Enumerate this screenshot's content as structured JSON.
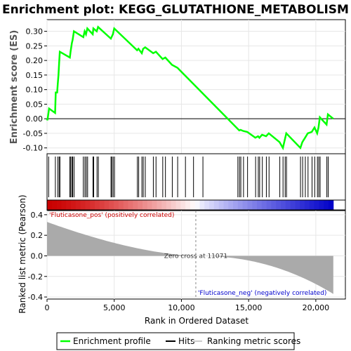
{
  "chart_data": {
    "type": "line",
    "title": "Enrichment plot: KEGG_GLUTATHIONE_METABOLISM",
    "top_panel": {
      "ylabel": "Enrichment score (ES)",
      "ylim": [
        -0.12,
        0.34
      ],
      "yticks": [
        "-0.10",
        "-0.05",
        "0.00",
        "0.05",
        "0.10",
        "0.15",
        "0.20",
        "0.25",
        "0.30"
      ],
      "ytick_values": [
        -0.1,
        -0.05,
        0.0,
        0.05,
        0.1,
        0.15,
        0.2,
        0.25,
        0.3
      ],
      "series": [
        {
          "name": "Enrichment profile",
          "color": "#00ff00",
          "points": [
            [
              0,
              0.0
            ],
            [
              30,
              -0.005
            ],
            [
              150,
              0.035
            ],
            [
              600,
              0.02
            ],
            [
              650,
              0.09
            ],
            [
              750,
              0.09
            ],
            [
              800,
              0.12
            ],
            [
              850,
              0.15
            ],
            [
              900,
              0.19
            ],
            [
              950,
              0.23
            ],
            [
              1700,
              0.21
            ],
            [
              1750,
              0.23
            ],
            [
              1850,
              0.26
            ],
            [
              1900,
              0.27
            ],
            [
              2000,
              0.3
            ],
            [
              2700,
              0.28
            ],
            [
              2800,
              0.3
            ],
            [
              2900,
              0.29
            ],
            [
              3000,
              0.31
            ],
            [
              3400,
              0.29
            ],
            [
              3450,
              0.31
            ],
            [
              3700,
              0.3
            ],
            [
              3800,
              0.315
            ],
            [
              4750,
              0.275
            ],
            [
              4800,
              0.28
            ],
            [
              4900,
              0.29
            ],
            [
              5000,
              0.31
            ],
            [
              6700,
              0.235
            ],
            [
              6800,
              0.24
            ],
            [
              7050,
              0.225
            ],
            [
              7150,
              0.24
            ],
            [
              7300,
              0.245
            ],
            [
              7900,
              0.225
            ],
            [
              8100,
              0.23
            ],
            [
              8600,
              0.205
            ],
            [
              8800,
              0.21
            ],
            [
              9300,
              0.185
            ],
            [
              9700,
              0.175
            ],
            [
              14200,
              -0.035
            ],
            [
              14300,
              -0.04
            ],
            [
              14400,
              -0.038
            ],
            [
              14600,
              -0.042
            ],
            [
              14900,
              -0.045
            ],
            [
              15500,
              -0.065
            ],
            [
              15700,
              -0.06
            ],
            [
              15800,
              -0.065
            ],
            [
              16000,
              -0.055
            ],
            [
              16300,
              -0.06
            ],
            [
              16500,
              -0.05
            ],
            [
              17300,
              -0.08
            ],
            [
              17550,
              -0.1
            ],
            [
              17700,
              -0.07
            ],
            [
              17800,
              -0.05
            ],
            [
              18850,
              -0.1
            ],
            [
              19000,
              -0.08
            ],
            [
              19200,
              -0.065
            ],
            [
              19400,
              -0.05
            ],
            [
              19700,
              -0.045
            ],
            [
              19900,
              -0.03
            ],
            [
              20100,
              -0.05
            ],
            [
              20200,
              -0.03
            ],
            [
              20300,
              0.005
            ],
            [
              20800,
              -0.02
            ],
            [
              20900,
              0.015
            ],
            [
              21300,
              0.0
            ]
          ]
        }
      ]
    },
    "hits": [
      120,
      620,
      800,
      900,
      960,
      1700,
      1760,
      1860,
      1910,
      2010,
      2700,
      2820,
      2920,
      3020,
      3420,
      3470,
      3720,
      3820,
      4760,
      4820,
      4920,
      5020,
      6720,
      6820,
      7060,
      7160,
      7310,
      7910,
      8110,
      8610,
      8810,
      9320,
      9720,
      10300,
      10900,
      11600,
      14200,
      14320,
      14420,
      14620,
      14920,
      15520,
      15720,
      15820,
      16020,
      16320,
      16520,
      17320,
      17560,
      17720,
      17820,
      18860,
      19020,
      19220,
      19420,
      19720,
      19920,
      20120,
      20220,
      20320,
      20820,
      20920
    ],
    "bottom_panel": {
      "ylabel": "Ranked list metric (Pearson)",
      "xlabel": "Rank in Ordered Dataset",
      "ylim": [
        -0.42,
        0.44
      ],
      "yticks": [
        "-0.4",
        "-0.2",
        "0.0",
        "0.2",
        "0.4"
      ],
      "ytick_values": [
        -0.4,
        -0.2,
        0.0,
        0.2,
        0.4
      ],
      "xlim": [
        0,
        22200
      ],
      "xticks": [
        "0",
        "5,000",
        "10,000",
        "15,000",
        "20,000"
      ],
      "xtick_values": [
        0,
        5000,
        10000,
        15000,
        20000
      ],
      "max_rank": 21300,
      "zero_cross_rank": 11071,
      "metric_start": 0.33,
      "metric_end": -0.37,
      "zero_cross_label": "Zero cross at 11071",
      "pos_label": "'Fluticasone_pos' (positively correlated)",
      "neg_label": "'Fluticasone_neg' (negatively correlated)",
      "pos_color": "#cc0000",
      "neg_color": "#0000cc",
      "fill_color": "#aaaaaa"
    },
    "legend": [
      {
        "label": "Enrichment profile",
        "color": "#00ff00"
      },
      {
        "label": "Hits",
        "color": "#000000"
      },
      {
        "label": "Ranking metric scores",
        "color": "#cccccc"
      }
    ],
    "legend_position": "bottom",
    "grid": true
  }
}
